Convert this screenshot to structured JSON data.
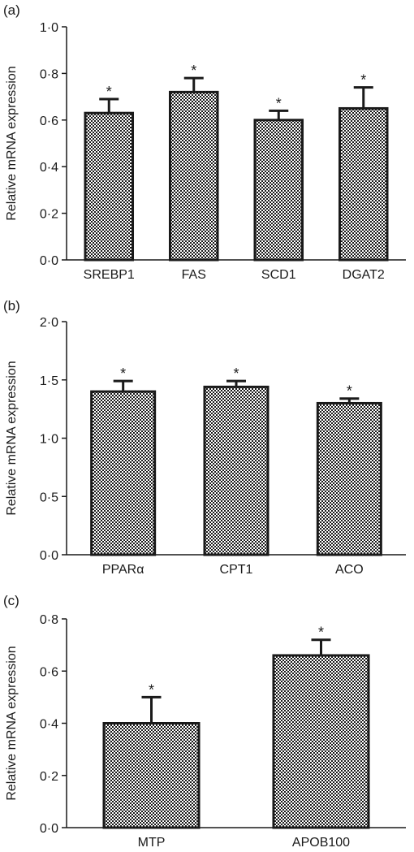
{
  "chart_data": [
    {
      "type": "bar",
      "panel_label": "(a)",
      "ylabel": "Relative mRNA expression",
      "ylim": [
        0,
        1.0
      ],
      "yticks": [
        0,
        0.2,
        0.4,
        0.6,
        0.8,
        1.0
      ],
      "ytick_labels": [
        "0·0",
        "0·2",
        "0·4",
        "0·6",
        "0·8",
        "1·0"
      ],
      "categories": [
        "SREBP1",
        "FAS",
        "SCD1",
        "DGAT2"
      ],
      "values": [
        0.63,
        0.72,
        0.6,
        0.65
      ],
      "errors": [
        0.06,
        0.06,
        0.04,
        0.09
      ],
      "annotations": [
        "*",
        "*",
        "*",
        "*"
      ]
    },
    {
      "type": "bar",
      "panel_label": "(b)",
      "ylabel": "Relative mRNA expression",
      "ylim": [
        0,
        2.0
      ],
      "yticks": [
        0,
        0.5,
        1.0,
        1.5,
        2.0
      ],
      "ytick_labels": [
        "0·0",
        "0·5",
        "1·0",
        "1·5",
        "2·0"
      ],
      "categories": [
        "PPARα",
        "CPT1",
        "ACO"
      ],
      "values": [
        1.4,
        1.44,
        1.3
      ],
      "errors": [
        0.09,
        0.05,
        0.04
      ],
      "annotations": [
        "*",
        "*",
        "*"
      ]
    },
    {
      "type": "bar",
      "panel_label": "(c)",
      "ylabel": "Relative mRNA expression",
      "ylim": [
        0,
        0.8
      ],
      "yticks": [
        0,
        0.2,
        0.4,
        0.6,
        0.8
      ],
      "ytick_labels": [
        "0·0",
        "0·2",
        "0·4",
        "0·6",
        "0·8"
      ],
      "categories": [
        "MTP",
        "APOB100"
      ],
      "values": [
        0.4,
        0.66
      ],
      "errors": [
        0.1,
        0.06
      ],
      "annotations": [
        "*",
        "*"
      ]
    }
  ],
  "style": {
    "bar_fill": "checkerboard",
    "bar_color": "#1a1a1a",
    "background": "#ffffff"
  }
}
